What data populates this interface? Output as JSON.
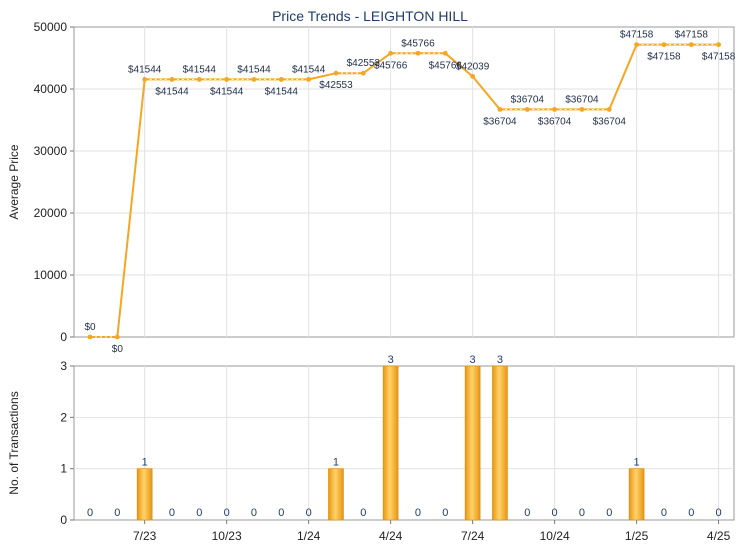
{
  "chart_data": [
    {
      "type": "line",
      "title": "Price Trends - LEIGHTON HILL",
      "ylabel": "Average Price",
      "ylim": [
        0,
        50000
      ],
      "yticks": [
        "0",
        "10000",
        "20000",
        "30000",
        "40000",
        "50000"
      ],
      "grid": true,
      "color": "#f5a623",
      "points": [
        {
          "x": "2023-05",
          "y": 0,
          "label": "$0"
        },
        {
          "x": "2023-06",
          "y": 0,
          "label": "$0"
        },
        {
          "x": "2023-07",
          "y": 41544,
          "label": "$41544"
        },
        {
          "x": "2023-08",
          "y": 41544,
          "label": "$41544"
        },
        {
          "x": "2023-09",
          "y": 41544,
          "label": "$41544"
        },
        {
          "x": "2023-10",
          "y": 41544,
          "label": "$41544"
        },
        {
          "x": "2023-11",
          "y": 41544,
          "label": "$41544"
        },
        {
          "x": "2023-12",
          "y": 41544,
          "label": "$41544"
        },
        {
          "x": "2024-01",
          "y": 41544,
          "label": "$41544"
        },
        {
          "x": "2024-02",
          "y": 42553,
          "label": "$42553"
        },
        {
          "x": "2024-03",
          "y": 42553,
          "label": "$42553"
        },
        {
          "x": "2024-04",
          "y": 45766,
          "label": "$45766"
        },
        {
          "x": "2024-05",
          "y": 45766,
          "label": "$45766"
        },
        {
          "x": "2024-06",
          "y": 45766,
          "label": "$45766"
        },
        {
          "x": "2024-07",
          "y": 42039,
          "label": "$42039"
        },
        {
          "x": "2024-08",
          "y": 36704,
          "label": "$36704"
        },
        {
          "x": "2024-09",
          "y": 36704,
          "label": "$36704"
        },
        {
          "x": "2024-10",
          "y": 36704,
          "label": "$36704"
        },
        {
          "x": "2024-11",
          "y": 36704,
          "label": "$36704"
        },
        {
          "x": "2024-12",
          "y": 36704,
          "label": "$36704"
        },
        {
          "x": "2025-01",
          "y": 47158,
          "label": "$47158"
        },
        {
          "x": "2025-02",
          "y": 47158,
          "label": "$47158"
        },
        {
          "x": "2025-03",
          "y": 47158,
          "label": "$47158"
        },
        {
          "x": "2025-04",
          "y": 47158,
          "label": "$47158"
        }
      ]
    },
    {
      "type": "bar",
      "ylabel": "No. of Transactions",
      "ylim": [
        0,
        3
      ],
      "yticks": [
        "0",
        "1",
        "2",
        "3"
      ],
      "grid": true,
      "color": "#f0a81e",
      "x": [
        "2023-05",
        "2023-06",
        "2023-07",
        "2023-08",
        "2023-09",
        "2023-10",
        "2023-11",
        "2023-12",
        "2024-01",
        "2024-02",
        "2024-03",
        "2024-04",
        "2024-05",
        "2024-06",
        "2024-07",
        "2024-08",
        "2024-09",
        "2024-10",
        "2024-11",
        "2024-12",
        "2025-01",
        "2025-02",
        "2025-03",
        "2025-04"
      ],
      "values": [
        0,
        0,
        1,
        0,
        0,
        0,
        0,
        0,
        0,
        1,
        0,
        3,
        0,
        0,
        3,
        3,
        0,
        0,
        0,
        0,
        1,
        0,
        0,
        0
      ],
      "xticks": [
        {
          "x": "2023-07",
          "label": "7/23"
        },
        {
          "x": "2023-10",
          "label": "10/23"
        },
        {
          "x": "2024-01",
          "label": "1/24"
        },
        {
          "x": "2024-04",
          "label": "4/24"
        },
        {
          "x": "2024-07",
          "label": "7/24"
        },
        {
          "x": "2024-10",
          "label": "10/24"
        },
        {
          "x": "2025-01",
          "label": "1/25"
        },
        {
          "x": "2025-04",
          "label": "4/25"
        }
      ]
    }
  ]
}
